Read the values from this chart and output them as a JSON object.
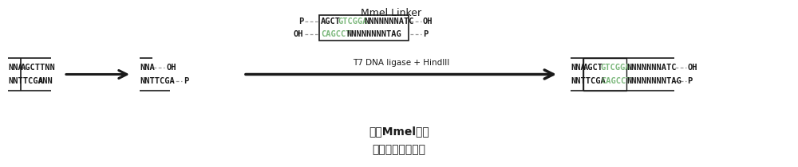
{
  "title": "Mmel Linker",
  "subtitle_line1": "连接Mmel接头",
  "subtitle_line2": "（同时裁切连接）",
  "arrow_label": "T7 DNA ligase + HindIII",
  "bg_color": "#ffffff",
  "black": "#1a1a1a",
  "green": "#7cb87c",
  "gray": "#999999",
  "darkgray": "#555555"
}
